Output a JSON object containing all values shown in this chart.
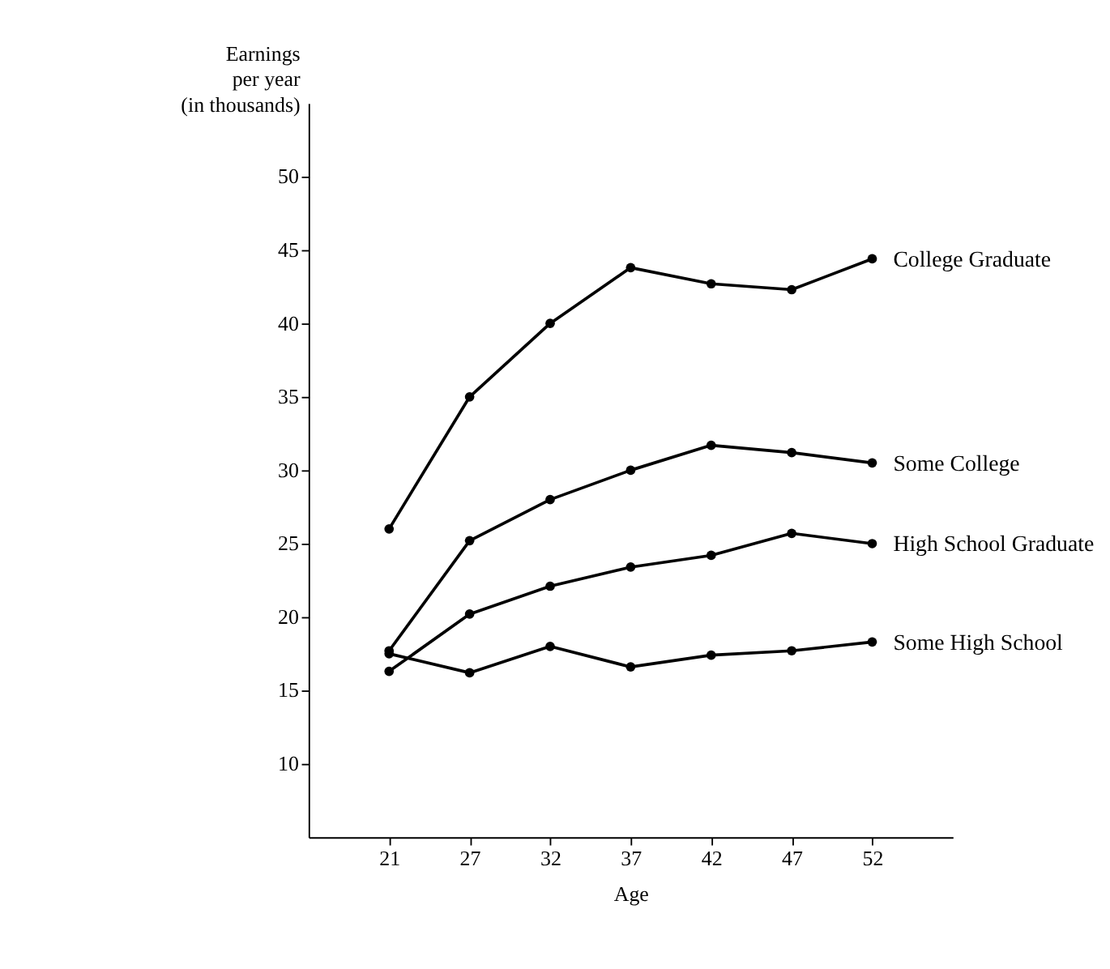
{
  "chart_data": {
    "type": "line",
    "xlabel": "Age",
    "ylabel": "Earnings\nper year\n(in thousands)",
    "categories": [
      "21",
      "27",
      "32",
      "37",
      "42",
      "47",
      "52"
    ],
    "series": [
      {
        "name": "College Graduate",
        "color": "#000000",
        "values": [
          26.0,
          35.0,
          40.0,
          43.8,
          42.7,
          42.3,
          44.4
        ]
      },
      {
        "name": "Some College",
        "color": "#000000",
        "values": [
          17.7,
          25.2,
          28.0,
          30.0,
          31.7,
          31.2,
          30.5
        ]
      },
      {
        "name": "High School Graduate",
        "color": "#000000",
        "values": [
          16.3,
          20.2,
          22.1,
          23.4,
          24.2,
          25.7,
          25.0
        ]
      },
      {
        "name": "Some High School",
        "color": "#000000",
        "values": [
          17.5,
          16.2,
          18.0,
          16.6,
          17.4,
          17.7,
          18.3
        ]
      }
    ],
    "ylim": [
      5,
      55
    ],
    "yticks": [
      10,
      15,
      20,
      25,
      30,
      35,
      40,
      45,
      50
    ],
    "grid": false,
    "legend": false,
    "marker": "circle",
    "line_style": "solid"
  }
}
